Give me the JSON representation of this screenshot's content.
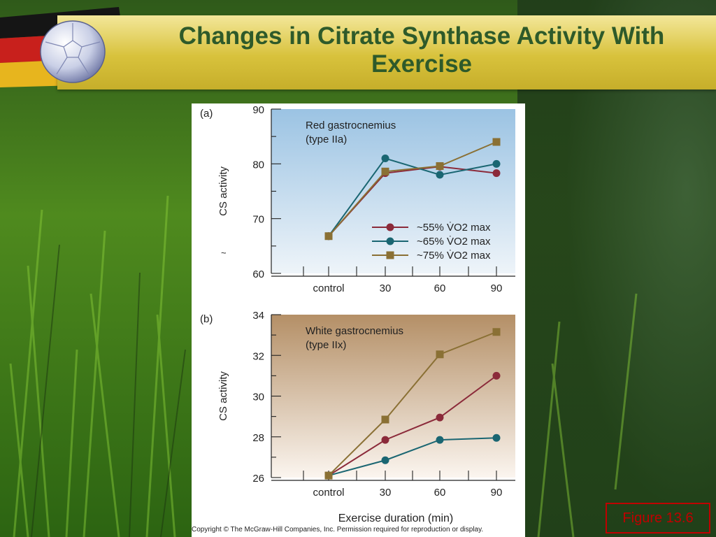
{
  "slide": {
    "title": "Changes in Citrate Synthase Activity With Exercise",
    "copyright": "Copyright © The McGraw-Hill Companies, Inc. Permission required for reproduction or display.",
    "figure_label": "Figure 13.6"
  },
  "colors": {
    "vo2_55": "#8b2a3a",
    "vo2_65": "#1a6672",
    "vo2_75": "#8a7034",
    "panel_a_bg_top": "#9bc3e3",
    "panel_a_bg_bottom": "#eef4f9",
    "panel_b_bg_top": "#b48f66",
    "panel_b_bg_bottom": "#fbf5ef",
    "banner": "#d8c23c",
    "title": "#2e5a2a"
  },
  "chart_data": [
    {
      "type": "line",
      "panel": "(a)",
      "annotation": "Red gastrocnemius\n(type IIa)",
      "xlabel": "",
      "ylabel": "CS activity",
      "categories": [
        "control",
        "30",
        "60",
        "90"
      ],
      "ylim": [
        60,
        90
      ],
      "yticks": [
        60,
        70,
        80,
        90
      ],
      "legend": "bottom-right",
      "series": [
        {
          "name": "~55% V̇O2 max",
          "marker": "circle",
          "values": [
            66.8,
            78.3,
            79.5,
            78.3
          ]
        },
        {
          "name": "~65% V̇O2 max",
          "marker": "circle",
          "values": [
            66.8,
            81.0,
            78.0,
            80.0
          ]
        },
        {
          "name": "~75% V̇O2 max",
          "marker": "square",
          "values": [
            66.8,
            78.6,
            79.6,
            84.0
          ]
        }
      ],
      "extra_mark": "~"
    },
    {
      "type": "line",
      "panel": "(b)",
      "annotation": "White gastrocnemius\n(type IIx)",
      "xlabel": "Exercise duration (min)",
      "ylabel": "CS activity",
      "categories": [
        "control",
        "30",
        "60",
        "90"
      ],
      "ylim": [
        26,
        34
      ],
      "yticks": [
        26,
        28,
        30,
        32,
        34
      ],
      "series": [
        {
          "name": "~55% V̇O2 max",
          "marker": "circle",
          "values": [
            26.1,
            27.85,
            28.95,
            31.0
          ]
        },
        {
          "name": "~65% V̇O2 max",
          "marker": "circle",
          "values": [
            26.1,
            26.85,
            27.85,
            27.95
          ]
        },
        {
          "name": "~75% V̇O2 max",
          "marker": "square",
          "values": [
            26.1,
            28.85,
            32.05,
            33.15
          ]
        }
      ]
    }
  ]
}
